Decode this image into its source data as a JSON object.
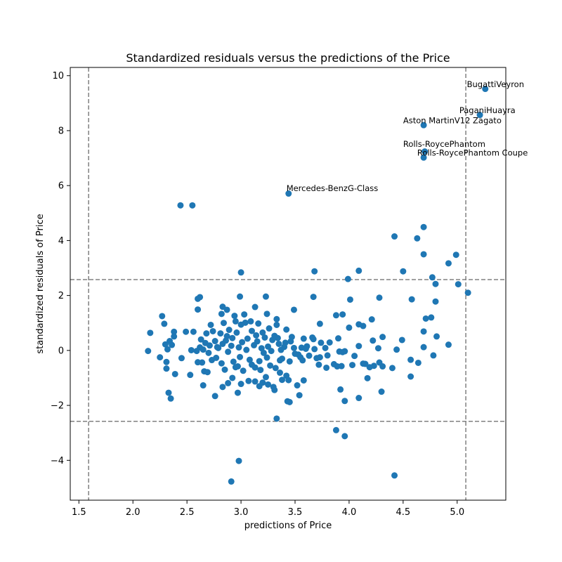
{
  "chart_data": {
    "type": "scatter",
    "title": "Standardized residuals versus the predictions of the Price",
    "xlabel": "predictions of Price",
    "ylabel": "standardized residuals of Price",
    "xlim": [
      1.42,
      5.45
    ],
    "ylim": [
      -5.45,
      10.3
    ],
    "xticks": [
      1.5,
      2.0,
      2.5,
      3.0,
      3.5,
      4.0,
      4.5,
      5.0
    ],
    "xtick_labels": [
      "1.5",
      "2.0",
      "2.5",
      "3.0",
      "3.5",
      "4.0",
      "4.5",
      "5.0"
    ],
    "yticks": [
      -4,
      -2,
      0,
      2,
      4,
      6,
      8,
      10
    ],
    "ytick_labels": [
      "−4",
      "−2",
      "0",
      "2",
      "4",
      "6",
      "8",
      "10"
    ],
    "grid": false,
    "marker_color": "#1f77b4",
    "reference_line_color": "#808080",
    "reference_lines": {
      "vertical": [
        1.59,
        5.08
      ],
      "horizontal": [
        2.58,
        -2.58
      ]
    },
    "annotations": [
      {
        "text": "BugattiVeyron",
        "x": 5.09,
        "y": 9.58
      },
      {
        "text": "PaganiHuayra",
        "x": 5.02,
        "y": 8.64
      },
      {
        "text": "Aston MartinV12 Zagato",
        "x": 4.5,
        "y": 8.27
      },
      {
        "text": "Rolls-RoycePhantom",
        "x": 4.5,
        "y": 7.41
      },
      {
        "text": "Rolls-RoycePhantom Coupe",
        "x": 4.63,
        "y": 7.09
      },
      {
        "text": "Mercedes-BenzG-Class",
        "x": 3.42,
        "y": 5.8
      }
    ],
    "points": [
      [
        5.26,
        9.52
      ],
      [
        5.21,
        8.57
      ],
      [
        4.69,
        8.2
      ],
      [
        4.7,
        7.24
      ],
      [
        4.69,
        7.02
      ],
      [
        3.44,
        5.71
      ],
      [
        2.44,
        5.28
      ],
      [
        2.55,
        5.28
      ],
      [
        4.42,
        4.15
      ],
      [
        4.63,
        4.08
      ],
      [
        4.69,
        4.49
      ],
      [
        4.69,
        3.5
      ],
      [
        4.99,
        3.48
      ],
      [
        4.92,
        3.17
      ],
      [
        4.77,
        2.66
      ],
      [
        4.5,
        2.88
      ],
      [
        4.8,
        2.42
      ],
      [
        5.01,
        2.41
      ],
      [
        5.1,
        2.1
      ],
      [
        3.68,
        2.88
      ],
      [
        4.09,
        2.9
      ],
      [
        3.0,
        2.84
      ],
      [
        3.99,
        2.6
      ],
      [
        4.58,
        1.86
      ],
      [
        4.8,
        1.78
      ],
      [
        4.71,
        1.16
      ],
      [
        4.76,
        1.2
      ],
      [
        4.28,
        1.92
      ],
      [
        4.01,
        1.85
      ],
      [
        3.23,
        1.96
      ],
      [
        2.99,
        1.96
      ],
      [
        2.6,
        1.88
      ],
      [
        2.62,
        1.94
      ],
      [
        3.67,
        1.95
      ],
      [
        3.49,
        1.48
      ],
      [
        2.6,
        1.49
      ],
      [
        2.83,
        1.59
      ],
      [
        2.87,
        1.48
      ],
      [
        3.13,
        1.58
      ],
      [
        3.03,
        1.31
      ],
      [
        3.24,
        1.33
      ],
      [
        4.21,
        1.13
      ],
      [
        3.94,
        1.31
      ],
      [
        3.88,
        1.28
      ],
      [
        2.27,
        1.25
      ],
      [
        2.94,
        1.26
      ],
      [
        3.33,
        1.14
      ],
      [
        2.82,
        1.33
      ],
      [
        4.69,
        0.69
      ],
      [
        4.81,
        0.51
      ],
      [
        4.92,
        0.21
      ],
      [
        4.49,
        0.38
      ],
      [
        4.44,
        0.03
      ],
      [
        4.69,
        0.12
      ],
      [
        4.78,
        -0.18
      ],
      [
        4.64,
        -0.45
      ],
      [
        4.57,
        -0.34
      ],
      [
        4.57,
        -0.95
      ],
      [
        4.4,
        -0.64
      ],
      [
        4.31,
        0.49
      ],
      [
        4.31,
        -0.58
      ],
      [
        4.27,
        0.08
      ],
      [
        4.28,
        -0.44
      ],
      [
        4.23,
        -0.56
      ],
      [
        4.19,
        -0.61
      ],
      [
        4.17,
        -1.01
      ],
      [
        4.15,
        -0.49
      ],
      [
        4.13,
        -0.48
      ],
      [
        4.09,
        0.95
      ],
      [
        4.13,
        0.89
      ],
      [
        4.03,
        -0.53
      ],
      [
        4.09,
        0.16
      ],
      [
        4.0,
        0.83
      ],
      [
        3.96,
        -0.03
      ],
      [
        3.89,
        -0.58
      ],
      [
        3.9,
        0.44
      ],
      [
        3.91,
        -0.04
      ],
      [
        3.93,
        -0.57
      ],
      [
        3.94,
        -0.06
      ],
      [
        3.86,
        -0.5
      ],
      [
        3.82,
        0.29
      ],
      [
        3.79,
        -0.63
      ],
      [
        3.74,
        0.28
      ],
      [
        3.73,
        0.97
      ],
      [
        3.72,
        -0.52
      ],
      [
        3.73,
        -0.25
      ],
      [
        3.68,
        0.05
      ],
      [
        3.67,
        0.41
      ],
      [
        3.66,
        0.47
      ],
      [
        3.63,
        -0.19
      ],
      [
        3.61,
        0.15
      ],
      [
        3.58,
        0.43
      ],
      [
        3.56,
        0.1
      ],
      [
        3.55,
        -0.25
      ],
      [
        3.53,
        -0.15
      ],
      [
        3.49,
        0.09
      ],
      [
        3.47,
        0.49
      ],
      [
        3.45,
        -0.4
      ],
      [
        3.42,
        0.76
      ],
      [
        3.41,
        0.28
      ],
      [
        3.4,
        0.13
      ],
      [
        3.38,
        -0.3
      ],
      [
        3.37,
        0.02
      ],
      [
        3.35,
        0.24
      ],
      [
        3.34,
        0.45
      ],
      [
        3.33,
        0.93
      ],
      [
        3.31,
        0.53
      ],
      [
        3.29,
        0.38
      ],
      [
        3.28,
        -0.02
      ],
      [
        3.26,
        0.8
      ],
      [
        3.25,
        0.14
      ],
      [
        3.24,
        -0.26
      ],
      [
        3.22,
        0.47
      ],
      [
        3.21,
        -0.09
      ],
      [
        3.2,
        0.65
      ],
      [
        3.19,
        0.08
      ],
      [
        3.17,
        -0.39
      ],
      [
        3.16,
        0.98
      ],
      [
        3.15,
        0.33
      ],
      [
        3.13,
        -0.62
      ],
      [
        3.12,
        0.19
      ],
      [
        3.1,
        0.71
      ],
      [
        3.09,
        1.06
      ],
      [
        3.08,
        -0.34
      ],
      [
        3.06,
        0.43
      ],
      [
        3.05,
        0.02
      ],
      [
        3.04,
        1.01
      ],
      [
        3.02,
        -0.74
      ],
      [
        3.01,
        0.3
      ],
      [
        3.0,
        0.94
      ],
      [
        2.99,
        -0.24
      ],
      [
        2.98,
        0.11
      ],
      [
        2.97,
        -0.58
      ],
      [
        2.96,
        0.65
      ],
      [
        2.95,
        1.06
      ],
      [
        2.93,
        -0.41
      ],
      [
        2.92,
        0.45
      ],
      [
        2.91,
        0.17
      ],
      [
        2.89,
        0.75
      ],
      [
        2.88,
        -0.05
      ],
      [
        2.86,
        0.36
      ],
      [
        2.85,
        -0.7
      ],
      [
        2.84,
        1.0
      ],
      [
        2.83,
        0.24
      ],
      [
        2.82,
        -0.47
      ],
      [
        2.81,
        0.62
      ],
      [
        2.79,
        0.09
      ],
      [
        2.77,
        -0.27
      ],
      [
        2.76,
        0.34
      ],
      [
        2.74,
        0.7
      ],
      [
        2.73,
        -0.35
      ],
      [
        2.72,
        0.93
      ],
      [
        2.71,
        0.18
      ],
      [
        2.7,
        -0.09
      ],
      [
        2.68,
        0.62
      ],
      [
        2.67,
        0.27
      ],
      [
        2.66,
        -0.76
      ],
      [
        2.65,
        0.03
      ],
      [
        2.64,
        -0.44
      ],
      [
        2.63,
        0.4
      ],
      [
        2.62,
        0.11
      ],
      [
        2.6,
        -0.43
      ],
      [
        2.59,
        -0.02
      ],
      [
        2.56,
        0.68
      ],
      [
        2.54,
        0.01
      ],
      [
        2.53,
        -0.89
      ],
      [
        2.49,
        0.68
      ],
      [
        2.45,
        -0.28
      ],
      [
        2.38,
        0.68
      ],
      [
        2.38,
        0.51
      ],
      [
        2.36,
        0.2
      ],
      [
        2.34,
        0.34
      ],
      [
        2.32,
        0.04
      ],
      [
        2.31,
        -0.42
      ],
      [
        2.3,
        0.22
      ],
      [
        2.29,
        0.97
      ],
      [
        2.25,
        -0.25
      ],
      [
        2.16,
        0.64
      ],
      [
        2.14,
        -0.02
      ],
      [
        2.39,
        -0.86
      ],
      [
        2.31,
        -0.66
      ],
      [
        2.33,
        -1.54
      ],
      [
        2.35,
        -1.75
      ],
      [
        2.65,
        -1.27
      ],
      [
        2.69,
        -0.79
      ],
      [
        2.76,
        -1.66
      ],
      [
        2.83,
        -1.33
      ],
      [
        2.88,
        -1.19
      ],
      [
        2.92,
        -1.0
      ],
      [
        2.97,
        -1.54
      ],
      [
        3.0,
        -1.22
      ],
      [
        3.07,
        -1.11
      ],
      [
        3.13,
        -1.13
      ],
      [
        3.17,
        -1.3
      ],
      [
        3.2,
        -1.17
      ],
      [
        3.23,
        -0.97
      ],
      [
        3.25,
        -1.24
      ],
      [
        3.3,
        -1.33
      ],
      [
        3.31,
        -1.44
      ],
      [
        3.36,
        -0.81
      ],
      [
        3.38,
        -1.07
      ],
      [
        3.42,
        -0.92
      ],
      [
        3.44,
        -1.08
      ],
      [
        3.52,
        -1.27
      ],
      [
        3.54,
        -1.63
      ],
      [
        3.58,
        -1.09
      ],
      [
        3.43,
        -1.85
      ],
      [
        3.45,
        -1.88
      ],
      [
        3.92,
        -1.42
      ],
      [
        3.96,
        -1.84
      ],
      [
        4.09,
        -1.73
      ],
      [
        4.3,
        -1.5
      ],
      [
        3.33,
        -2.48
      ],
      [
        3.88,
        -2.9
      ],
      [
        3.96,
        -3.12
      ],
      [
        2.98,
        -4.02
      ],
      [
        2.91,
        -4.77
      ],
      [
        4.42,
        -4.55
      ],
      [
        3.1,
        -0.52
      ],
      [
        3.18,
        -0.71
      ],
      [
        3.27,
        -0.55
      ],
      [
        3.36,
        -0.36
      ],
      [
        3.5,
        -0.12
      ],
      [
        3.6,
        0.06
      ],
      [
        3.7,
        -0.28
      ],
      [
        3.8,
        -0.18
      ],
      [
        2.95,
        -0.61
      ],
      [
        2.87,
        0.52
      ],
      [
        2.78,
        0.12
      ],
      [
        3.14,
        0.55
      ],
      [
        3.32,
        -0.64
      ],
      [
        3.46,
        0.33
      ],
      [
        3.57,
        -0.36
      ],
      [
        3.78,
        0.09
      ],
      [
        4.05,
        -0.2
      ],
      [
        4.22,
        0.36
      ]
    ]
  }
}
